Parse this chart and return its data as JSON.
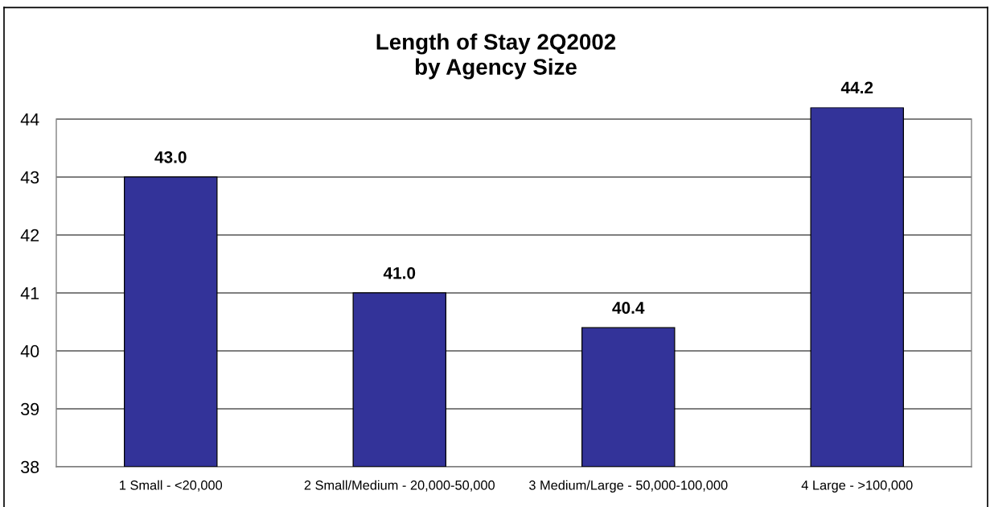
{
  "chart_data": {
    "type": "bar",
    "title": "Length of Stay 2Q2002\nby Agency Size",
    "categories": [
      "1 Small - <20,000",
      "2 Small/Medium - 20,000-50,000",
      "3 Medium/Large - 50,000-100,000",
      "4 Large - >100,000"
    ],
    "values": [
      43.0,
      41.0,
      40.4,
      44.2
    ],
    "color": "#333399",
    "value_labels": [
      "43.0",
      "41.0",
      "40.4",
      "44.2"
    ],
    "ylim": [
      38,
      44.2
    ],
    "yticks": [
      38,
      39,
      40,
      41,
      42,
      43,
      44
    ],
    "grid": "y"
  }
}
